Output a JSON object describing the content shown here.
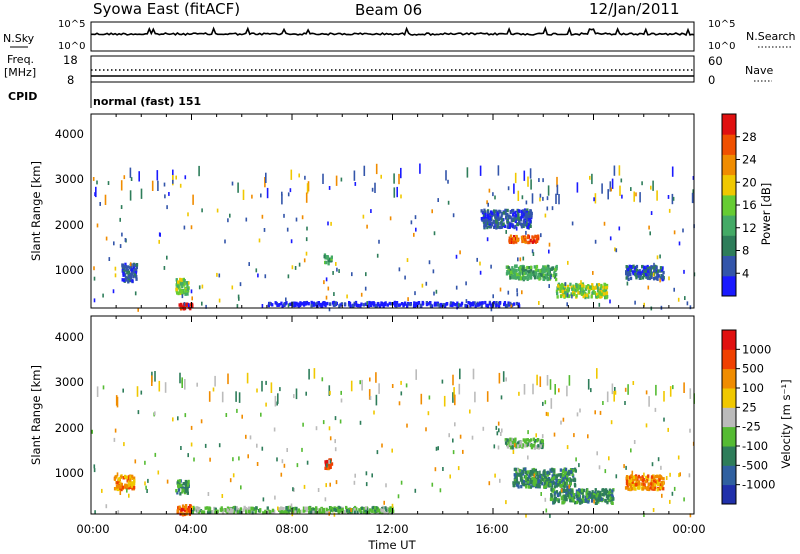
{
  "header": {
    "title": "Syowa East (fitACF)",
    "beam": "Beam 06",
    "date": "12/Jan/2011"
  },
  "nsky_panel": {
    "left_label": "N.Sky",
    "right_label": "N.Search",
    "left_ticks": [
      "10^5",
      "10^0"
    ],
    "right_ticks": [
      "10^5",
      "10^0"
    ]
  },
  "freq_panel": {
    "left_label_1": "Freq.",
    "left_label_2": "[MHz]",
    "right_label": "Nave",
    "left_ticks": [
      "18",
      "8"
    ],
    "right_ticks": [
      "60",
      "0"
    ]
  },
  "cpid_panel": {
    "left_label": "CPID",
    "text": "normal (fast) 151"
  },
  "power_panel": {
    "ylabel": "Slant Range [km]",
    "yticks": [
      "4000",
      "3000",
      "2000",
      "1000"
    ],
    "colorbar_label": "Power [dB]",
    "colorbar_ticks": [
      "28",
      "24",
      "20",
      "16",
      "12",
      "8",
      "4"
    ],
    "colors": [
      "#1a1aff",
      "#3355aa",
      "#2e7d5a",
      "#44aa66",
      "#66cc33",
      "#f0c800",
      "#f08c00",
      "#f05000",
      "#e01010"
    ]
  },
  "velocity_panel": {
    "ylabel": "Slant Range [km]",
    "yticks": [
      "4000",
      "3000",
      "2000",
      "1000"
    ],
    "colorbar_label": "Velocity [m s⁻¹]",
    "colorbar_ticks": [
      "1000",
      "500",
      "100",
      "25",
      "-25",
      "-100",
      "-500",
      "-1000"
    ],
    "colors": [
      "#2030aa",
      "#3060a0",
      "#2e7d5a",
      "#55bb33",
      "#bbbbbb",
      "#f0c800",
      "#f08c00",
      "#f04000",
      "#e01010"
    ]
  },
  "xaxis": {
    "label": "Time UT",
    "ticks": [
      "00:00",
      "04:00",
      "08:00",
      "12:00",
      "16:00",
      "20:00",
      "00:00"
    ]
  },
  "chart_data": {
    "type": "heatmap",
    "x_range_hours": [
      0,
      24
    ],
    "y_range_km": [
      180,
      4500
    ],
    "power_blobs": [
      {
        "t": 3.7,
        "r": 250,
        "dt": 0.6,
        "dr": 120,
        "level": 8
      },
      {
        "t": 3.6,
        "r": 700,
        "dt": 0.5,
        "dr": 350,
        "level": 4
      },
      {
        "t": 1.5,
        "r": 1000,
        "dt": 0.6,
        "dr": 400,
        "level": 1
      },
      {
        "t": 17.2,
        "r": 1750,
        "dt": 1.2,
        "dr": 150,
        "level": 7
      },
      {
        "t": 17.5,
        "r": 1000,
        "dt": 2.0,
        "dr": 300,
        "level": 3
      },
      {
        "t": 19.5,
        "r": 600,
        "dt": 2.0,
        "dr": 300,
        "level": 4
      },
      {
        "t": 22.0,
        "r": 1000,
        "dt": 1.5,
        "dr": 300,
        "level": 1
      },
      {
        "t": 9.4,
        "r": 1300,
        "dt": 0.3,
        "dr": 200,
        "level": 3
      },
      {
        "t": 16.5,
        "r": 2200,
        "dt": 2.0,
        "dr": 400,
        "level": 1
      },
      {
        "t": 12.0,
        "r": 300,
        "dt": 10.0,
        "dr": 80,
        "level": 0
      }
    ],
    "velocity_blobs": [
      {
        "t": 3.7,
        "r": 300,
        "dt": 0.6,
        "dr": 200,
        "level": 7
      },
      {
        "t": 3.6,
        "r": 800,
        "dt": 0.5,
        "dr": 300,
        "level": 2
      },
      {
        "t": 1.3,
        "r": 900,
        "dt": 0.8,
        "dr": 300,
        "level": 6
      },
      {
        "t": 17.2,
        "r": 1750,
        "dt": 1.5,
        "dr": 200,
        "level": 3
      },
      {
        "t": 18.0,
        "r": 1000,
        "dt": 2.5,
        "dr": 400,
        "level": 2
      },
      {
        "t": 19.5,
        "r": 600,
        "dt": 2.5,
        "dr": 300,
        "level": 2
      },
      {
        "t": 9.4,
        "r": 1300,
        "dt": 0.3,
        "dr": 200,
        "level": 7
      },
      {
        "t": 22.0,
        "r": 900,
        "dt": 1.5,
        "dr": 300,
        "level": 6
      },
      {
        "t": 8.0,
        "r": 300,
        "dt": 8.0,
        "dr": 120,
        "level": 3
      }
    ]
  }
}
